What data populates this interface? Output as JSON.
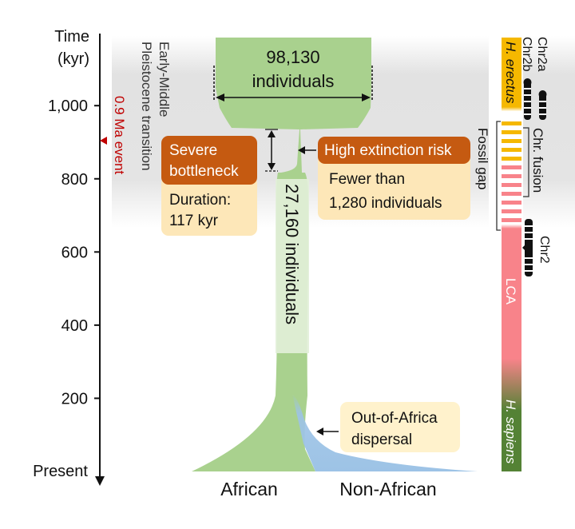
{
  "axis": {
    "title_line1": "Time",
    "title_line2": "(kyr)",
    "ticks": [
      {
        "value": 1000,
        "label": "1,000"
      },
      {
        "value": 800,
        "label": "800"
      },
      {
        "value": 600,
        "label": "600"
      },
      {
        "value": 400,
        "label": "400"
      },
      {
        "value": 200,
        "label": "200"
      }
    ],
    "present_label": "Present"
  },
  "transition": {
    "line1": "Early-Middle",
    "line2": "Pleistocene transition"
  },
  "event": {
    "label": "0.9 Ma event",
    "color": "#c00000"
  },
  "ancestral": {
    "count": "98,130",
    "unit": "individuals"
  },
  "bottleneck": {
    "title_line1": "Severe",
    "title_line2": "bottleneck",
    "duration_line1": "Duration:",
    "duration_line2": "117 kyr"
  },
  "extinction": {
    "title": "High extinction risk",
    "detail_line1": "Fewer than",
    "detail_line2": "1,280 individuals"
  },
  "recovered": {
    "label": "27,160 individuals"
  },
  "dispersal": {
    "line1": "Out-of-Africa",
    "line2": "dispersal"
  },
  "bottom_labels": {
    "african": "African",
    "non_african": "Non-African"
  },
  "right_panel": {
    "h_erectus": "H. erectus",
    "lca": "LCA",
    "h_sapiens": "H. sapiens",
    "fossil_gap": "Fossil gap",
    "chr_fusion": "Chr. fusion",
    "chr2a": "Chr2a",
    "chr2b": "Chr2b",
    "chr2": "Chr2"
  },
  "colors": {
    "green": "#a9d18e",
    "blue": "#9dc3e6",
    "orange": "#c55a11",
    "yellow_box": "#fde7b8",
    "erectus_bar": "#f5b800",
    "lca_bar": "#f8838a",
    "sapiens_bar": "#548235"
  }
}
